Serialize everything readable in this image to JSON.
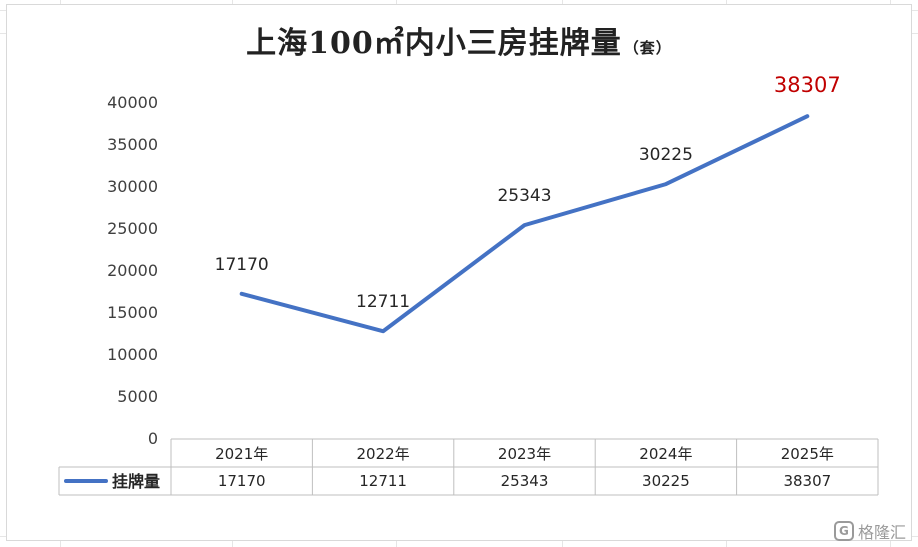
{
  "chart_data": {
    "type": "line",
    "title": "上海100㎡内小三房挂牌量",
    "title_unit": "（套）",
    "categories": [
      "2021年",
      "2022年",
      "2023年",
      "2024年",
      "2025年"
    ],
    "series": [
      {
        "name": "挂牌量",
        "values": [
          17170,
          12711,
          25343,
          30225,
          38307
        ]
      }
    ],
    "ylim": [
      0,
      40000
    ],
    "yticks": [
      0,
      5000,
      10000,
      15000,
      20000,
      25000,
      30000,
      35000,
      40000
    ],
    "data_labels": [
      "17170",
      "12711",
      "25343",
      "30225",
      "38307"
    ],
    "highlight_last_label": true,
    "legend": "data-table-bottom",
    "grid": false
  },
  "colors": {
    "line": "#4472c4",
    "label": "#262626",
    "highlight_label": "#c00000",
    "axis_text": "#404040",
    "table_border": "#bfbfbf"
  },
  "watermark": {
    "logo": "G",
    "text": "格隆汇"
  }
}
